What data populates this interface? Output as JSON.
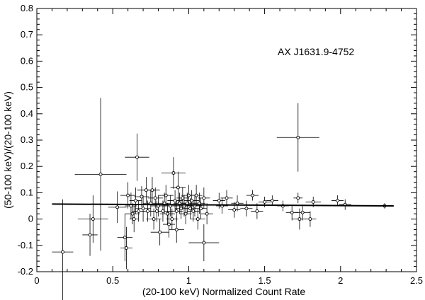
{
  "chart_data": {
    "type": "scatter",
    "title": "",
    "annotation": "AX J1631.9-4752",
    "xlabel": "(20-100 keV) Normalized Count Rate",
    "ylabel": "(50-100 keV)/(20-100 keV)",
    "xlim": [
      0,
      2.5
    ],
    "ylim": [
      -0.2,
      0.8
    ],
    "x_ticks": [
      "0",
      "0.5",
      "1",
      "1.5",
      "2",
      "2.5"
    ],
    "y_ticks": [
      "-0.2",
      "-0.1",
      "0",
      "0.1",
      "0.2",
      "0.3",
      "0.4",
      "0.5",
      "0.6",
      "0.7",
      "0.8"
    ],
    "x_tick_values": [
      0,
      0.5,
      1,
      1.5,
      2,
      2.5
    ],
    "y_tick_values": [
      -0.2,
      -0.1,
      0,
      0.1,
      0.2,
      0.3,
      0.4,
      0.5,
      0.6,
      0.7,
      0.8
    ],
    "grid": false,
    "fit_line": {
      "x": [
        0.1,
        2.35
      ],
      "y": [
        0.057,
        0.05
      ]
    },
    "points": [
      {
        "x": 0.17,
        "y": -0.125,
        "xerr": 0.07,
        "yerr": 0.2
      },
      {
        "x": 0.35,
        "y": -0.06,
        "xerr": 0.05,
        "yerr": 0.08
      },
      {
        "x": 0.37,
        "y": 0.0,
        "xerr": 0.1,
        "yerr": 0.09
      },
      {
        "x": 0.42,
        "y": 0.17,
        "xerr": 0.17,
        "yerr": 0.29
      },
      {
        "x": 0.53,
        "y": 0.045,
        "xerr": 0.06,
        "yerr": 0.06
      },
      {
        "x": 0.58,
        "y": -0.07,
        "xerr": 0.05,
        "yerr": 0.09
      },
      {
        "x": 0.59,
        "y": -0.11,
        "xerr": 0.04,
        "yerr": 0.08
      },
      {
        "x": 0.6,
        "y": 0.09,
        "xerr": 0.05,
        "yerr": 0.05
      },
      {
        "x": 0.62,
        "y": 0.05,
        "xerr": 0.04,
        "yerr": 0.05
      },
      {
        "x": 0.63,
        "y": 0.02,
        "xerr": 0.05,
        "yerr": 0.04
      },
      {
        "x": 0.64,
        "y": 0.0,
        "xerr": 0.03,
        "yerr": 0.05
      },
      {
        "x": 0.65,
        "y": 0.07,
        "xerr": 0.04,
        "yerr": 0.05
      },
      {
        "x": 0.66,
        "y": 0.235,
        "xerr": 0.08,
        "yerr": 0.09
      },
      {
        "x": 0.67,
        "y": 0.03,
        "xerr": 0.04,
        "yerr": 0.04
      },
      {
        "x": 0.69,
        "y": 0.085,
        "xerr": 0.05,
        "yerr": 0.04
      },
      {
        "x": 0.7,
        "y": 0.04,
        "xerr": 0.05,
        "yerr": 0.05
      },
      {
        "x": 0.72,
        "y": 0.11,
        "xerr": 0.06,
        "yerr": 0.05
      },
      {
        "x": 0.73,
        "y": 0.03,
        "xerr": 0.04,
        "yerr": 0.04
      },
      {
        "x": 0.75,
        "y": 0.06,
        "xerr": 0.05,
        "yerr": 0.05
      },
      {
        "x": 0.76,
        "y": 0.11,
        "xerr": 0.05,
        "yerr": 0.05
      },
      {
        "x": 0.77,
        "y": 0.0,
        "xerr": 0.05,
        "yerr": 0.04
      },
      {
        "x": 0.78,
        "y": 0.08,
        "xerr": 0.05,
        "yerr": 0.04
      },
      {
        "x": 0.79,
        "y": 0.03,
        "xerr": 0.04,
        "yerr": 0.04
      },
      {
        "x": 0.8,
        "y": 0.05,
        "xerr": 0.05,
        "yerr": 0.04
      },
      {
        "x": 0.81,
        "y": -0.05,
        "xerr": 0.06,
        "yerr": 0.05
      },
      {
        "x": 0.83,
        "y": 0.03,
        "xerr": 0.05,
        "yerr": 0.04
      },
      {
        "x": 0.84,
        "y": 0.06,
        "xerr": 0.04,
        "yerr": 0.04
      },
      {
        "x": 0.85,
        "y": 0.09,
        "xerr": 0.05,
        "yerr": 0.04
      },
      {
        "x": 0.86,
        "y": 0.02,
        "xerr": 0.05,
        "yerr": 0.04
      },
      {
        "x": 0.87,
        "y": -0.02,
        "xerr": 0.04,
        "yerr": 0.05
      },
      {
        "x": 0.88,
        "y": 0.05,
        "xerr": 0.05,
        "yerr": 0.04
      },
      {
        "x": 0.89,
        "y": 0.0,
        "xerr": 0.04,
        "yerr": 0.04
      },
      {
        "x": 0.9,
        "y": 0.175,
        "xerr": 0.08,
        "yerr": 0.06
      },
      {
        "x": 0.91,
        "y": 0.07,
        "xerr": 0.05,
        "yerr": 0.04
      },
      {
        "x": 0.92,
        "y": 0.03,
        "xerr": 0.04,
        "yerr": 0.04
      },
      {
        "x": 0.92,
        "y": -0.04,
        "xerr": 0.05,
        "yerr": 0.05
      },
      {
        "x": 0.93,
        "y": 0.12,
        "xerr": 0.05,
        "yerr": 0.06
      },
      {
        "x": 0.94,
        "y": 0.06,
        "xerr": 0.04,
        "yerr": 0.04
      },
      {
        "x": 0.95,
        "y": 0.04,
        "xerr": 0.04,
        "yerr": 0.04
      },
      {
        "x": 0.96,
        "y": 0.08,
        "xerr": 0.04,
        "yerr": 0.04
      },
      {
        "x": 0.97,
        "y": 0.05,
        "xerr": 0.04,
        "yerr": 0.04
      },
      {
        "x": 0.98,
        "y": 0.02,
        "xerr": 0.04,
        "yerr": 0.04
      },
      {
        "x": 0.99,
        "y": 0.06,
        "xerr": 0.04,
        "yerr": 0.04
      },
      {
        "x": 1.0,
        "y": 0.09,
        "xerr": 0.05,
        "yerr": 0.04
      },
      {
        "x": 1.01,
        "y": 0.04,
        "xerr": 0.04,
        "yerr": 0.04
      },
      {
        "x": 1.02,
        "y": 0.07,
        "xerr": 0.05,
        "yerr": 0.04
      },
      {
        "x": 1.03,
        "y": 0.03,
        "xerr": 0.04,
        "yerr": 0.04
      },
      {
        "x": 1.04,
        "y": 0.05,
        "xerr": 0.05,
        "yerr": 0.04
      },
      {
        "x": 1.05,
        "y": 0.09,
        "xerr": 0.04,
        "yerr": 0.04
      },
      {
        "x": 1.06,
        "y": 0.0,
        "xerr": 0.05,
        "yerr": 0.04
      },
      {
        "x": 1.07,
        "y": 0.06,
        "xerr": 0.04,
        "yerr": 0.04
      },
      {
        "x": 1.08,
        "y": 0.04,
        "xerr": 0.04,
        "yerr": 0.04
      },
      {
        "x": 1.1,
        "y": -0.09,
        "xerr": 0.1,
        "yerr": 0.07
      },
      {
        "x": 1.1,
        "y": 0.08,
        "xerr": 0.04,
        "yerr": 0.04
      },
      {
        "x": 1.12,
        "y": 0.02,
        "xerr": 0.04,
        "yerr": 0.04
      },
      {
        "x": 1.2,
        "y": 0.07,
        "xerr": 0.04,
        "yerr": 0.03
      },
      {
        "x": 1.22,
        "y": 0.05,
        "xerr": 0.04,
        "yerr": 0.03
      },
      {
        "x": 1.25,
        "y": 0.08,
        "xerr": 0.04,
        "yerr": 0.03
      },
      {
        "x": 1.3,
        "y": 0.035,
        "xerr": 0.04,
        "yerr": 0.03
      },
      {
        "x": 1.32,
        "y": 0.06,
        "xerr": 0.04,
        "yerr": 0.03
      },
      {
        "x": 1.38,
        "y": 0.04,
        "xerr": 0.04,
        "yerr": 0.03
      },
      {
        "x": 1.42,
        "y": 0.09,
        "xerr": 0.04,
        "yerr": 0.02
      },
      {
        "x": 1.45,
        "y": 0.03,
        "xerr": 0.04,
        "yerr": 0.03
      },
      {
        "x": 1.5,
        "y": 0.065,
        "xerr": 0.04,
        "yerr": 0.02
      },
      {
        "x": 1.55,
        "y": 0.07,
        "xerr": 0.04,
        "yerr": 0.02
      },
      {
        "x": 1.62,
        "y": 0.05,
        "xerr": 0.04,
        "yerr": 0.02
      },
      {
        "x": 1.68,
        "y": 0.025,
        "xerr": 0.04,
        "yerr": 0.03
      },
      {
        "x": 1.72,
        "y": 0.31,
        "xerr": 0.14,
        "yerr": 0.13
      },
      {
        "x": 1.72,
        "y": 0.08,
        "xerr": 0.03,
        "yerr": 0.02
      },
      {
        "x": 1.73,
        "y": 0.0,
        "xerr": 0.05,
        "yerr": 0.04
      },
      {
        "x": 1.75,
        "y": 0.025,
        "xerr": 0.05,
        "yerr": 0.03
      },
      {
        "x": 1.8,
        "y": 0.0,
        "xerr": 0.04,
        "yerr": 0.03
      },
      {
        "x": 1.82,
        "y": 0.065,
        "xerr": 0.05,
        "yerr": 0.02
      },
      {
        "x": 1.98,
        "y": 0.07,
        "xerr": 0.04,
        "yerr": 0.02
      },
      {
        "x": 2.03,
        "y": 0.055,
        "xerr": 0.04,
        "yerr": 0.02
      },
      {
        "x": 2.29,
        "y": 0.05,
        "xerr": 0.03,
        "yerr": 0.01
      }
    ]
  }
}
